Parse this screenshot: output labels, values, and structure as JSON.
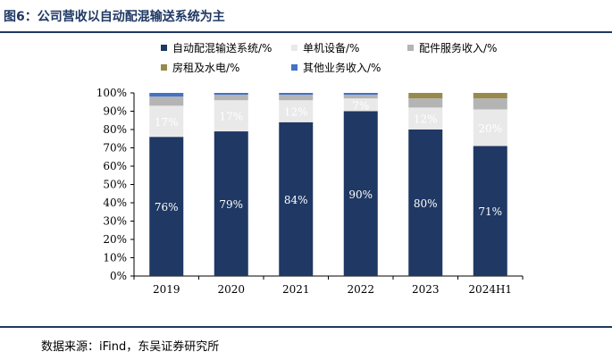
{
  "figure": {
    "title": "图6：公司营收以自动配混输送系统为主",
    "source": "数据来源：iFind，东吴证券研究所"
  },
  "colors": {
    "rule": "#1f3864",
    "series": [
      "#1f3864",
      "#e9e9e9",
      "#b4b4b4",
      "#978a4c",
      "#4472c4"
    ],
    "label_on_dark": "#ffffff",
    "label_on_light": "#ffffff"
  },
  "chart_data": {
    "type": "bar",
    "stacked": true,
    "categories": [
      "2019",
      "2020",
      "2021",
      "2022",
      "2023",
      "2024H1"
    ],
    "series": [
      {
        "name": "自动配混输送系统/%",
        "values": [
          76,
          79,
          84,
          90,
          80,
          71
        ],
        "labels": [
          "76%",
          "79%",
          "84%",
          "90%",
          "80%",
          "71%"
        ]
      },
      {
        "name": "单机设备/%",
        "values": [
          17,
          17,
          12,
          7,
          12,
          20
        ],
        "labels": [
          "17%",
          "17%",
          "12%",
          "7%",
          "12%",
          "20%"
        ]
      },
      {
        "name": "配件服务收入/%",
        "values": [
          5,
          3,
          3,
          2,
          5,
          6
        ],
        "labels": [
          "",
          "",
          "",
          "",
          "",
          ""
        ]
      },
      {
        "name": "房租及水电/%",
        "values": [
          0,
          0,
          0,
          0,
          3,
          3
        ],
        "labels": [
          "",
          "",
          "",
          "",
          "",
          ""
        ]
      },
      {
        "name": "其他业务收入/%",
        "values": [
          2,
          1,
          1,
          1,
          0,
          0
        ],
        "labels": [
          "",
          "",
          "",
          "",
          "",
          ""
        ]
      }
    ],
    "ylim": [
      0,
      100
    ],
    "yticks": [
      "0%",
      "10%",
      "20%",
      "30%",
      "40%",
      "50%",
      "60%",
      "70%",
      "80%",
      "90%",
      "100%"
    ],
    "grid": false,
    "legend_position": "top"
  }
}
